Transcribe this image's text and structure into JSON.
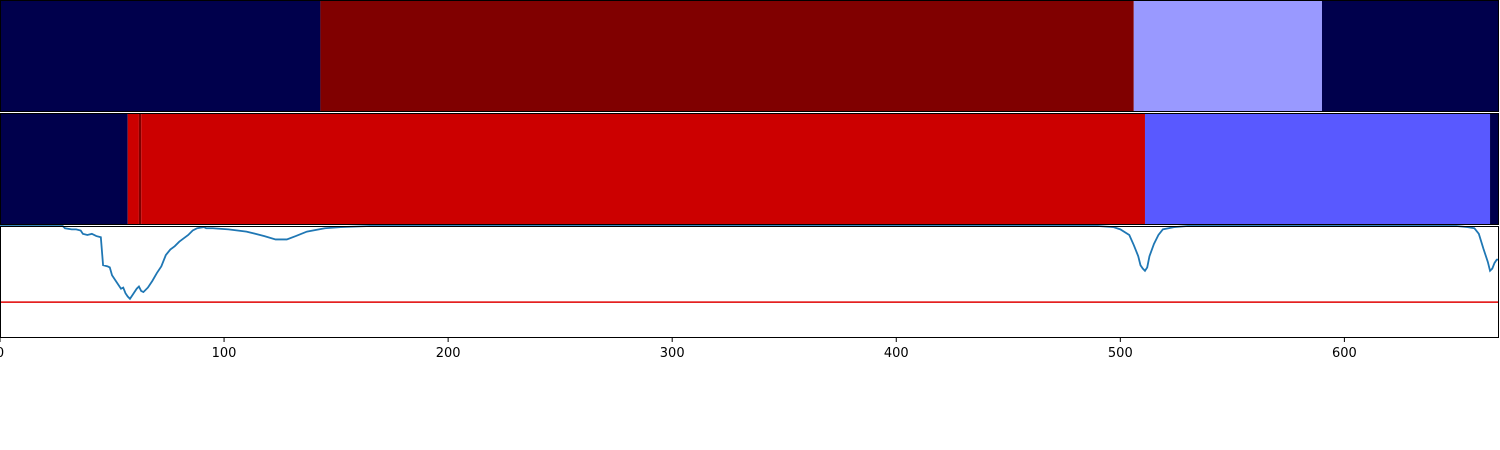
{
  "chart_data": [
    {
      "type": "heatmap",
      "xlim": [
        0,
        669
      ],
      "segments": [
        {
          "start": 0,
          "end": 143,
          "color": "#00004c"
        },
        {
          "start": 143,
          "end": 506,
          "color": "#800000"
        },
        {
          "start": 506,
          "end": 590,
          "color": "#9999ff"
        },
        {
          "start": 590,
          "end": 669,
          "color": "#00004c"
        }
      ]
    },
    {
      "type": "heatmap",
      "xlim": [
        0,
        669
      ],
      "segments": [
        {
          "start": 0,
          "end": 57,
          "color": "#00004c"
        },
        {
          "start": 57,
          "end": 62,
          "color": "#cc0000"
        },
        {
          "start": 62,
          "end": 63,
          "color": "#800000"
        },
        {
          "start": 63,
          "end": 511,
          "color": "#cc0000"
        },
        {
          "start": 511,
          "end": 665,
          "color": "#5959ff"
        },
        {
          "start": 665,
          "end": 669,
          "color": "#00004c"
        }
      ]
    },
    {
      "type": "line",
      "xlim": [
        0,
        669
      ],
      "ylim": [
        0,
        1
      ],
      "x_ticks": [
        0,
        100,
        200,
        300,
        400,
        500,
        600
      ],
      "threshold": {
        "y": 0.32,
        "color": "#e00000"
      },
      "series": [
        {
          "color": "#1f77b4",
          "points": [
            [
              0,
              1.0
            ],
            [
              28,
              1.0
            ],
            [
              29,
              0.98
            ],
            [
              32,
              0.97
            ],
            [
              34,
              0.97
            ],
            [
              36,
              0.96
            ],
            [
              37,
              0.93
            ],
            [
              39,
              0.92
            ],
            [
              41,
              0.93
            ],
            [
              43,
              0.91
            ],
            [
              45,
              0.9
            ],
            [
              46,
              0.65
            ],
            [
              48,
              0.64
            ],
            [
              49,
              0.63
            ],
            [
              50,
              0.56
            ],
            [
              52,
              0.5
            ],
            [
              54,
              0.44
            ],
            [
              55,
              0.45
            ],
            [
              56,
              0.4
            ],
            [
              57,
              0.37
            ],
            [
              58,
              0.35
            ],
            [
              59,
              0.38
            ],
            [
              61,
              0.44
            ],
            [
              62,
              0.46
            ],
            [
              63,
              0.42
            ],
            [
              64,
              0.41
            ],
            [
              66,
              0.45
            ],
            [
              68,
              0.51
            ],
            [
              70,
              0.58
            ],
            [
              72,
              0.64
            ],
            [
              74,
              0.74
            ],
            [
              76,
              0.79
            ],
            [
              78,
              0.82
            ],
            [
              80,
              0.86
            ],
            [
              82,
              0.89
            ],
            [
              84,
              0.92
            ],
            [
              86,
              0.96
            ],
            [
              88,
              0.98
            ],
            [
              91,
              0.99
            ],
            [
              92,
              0.98
            ],
            [
              95,
              0.98
            ],
            [
              102,
              0.97
            ],
            [
              110,
              0.95
            ],
            [
              118,
              0.91
            ],
            [
              123,
              0.88
            ],
            [
              128,
              0.88
            ],
            [
              132,
              0.91
            ],
            [
              137,
              0.95
            ],
            [
              145,
              0.98
            ],
            [
              152,
              0.99
            ],
            [
              165,
              1.0
            ],
            [
              300,
              1.0
            ],
            [
              490,
              1.0
            ],
            [
              497,
              0.99
            ],
            [
              500,
              0.97
            ],
            [
              504,
              0.92
            ],
            [
              506,
              0.83
            ],
            [
              508,
              0.73
            ],
            [
              509,
              0.65
            ],
            [
              510,
              0.62
            ],
            [
              511,
              0.6
            ],
            [
              512,
              0.63
            ],
            [
              513,
              0.73
            ],
            [
              515,
              0.84
            ],
            [
              517,
              0.92
            ],
            [
              519,
              0.97
            ],
            [
              524,
              0.99
            ],
            [
              530,
              1.0
            ],
            [
              650,
              1.0
            ],
            [
              655,
              0.99
            ],
            [
              658,
              0.98
            ],
            [
              660,
              0.93
            ],
            [
              662,
              0.8
            ],
            [
              663,
              0.74
            ],
            [
              664,
              0.68
            ],
            [
              665,
              0.6
            ],
            [
              666,
              0.62
            ],
            [
              667,
              0.67
            ],
            [
              668,
              0.7
            ],
            [
              669,
              0.7
            ]
          ]
        }
      ]
    }
  ]
}
